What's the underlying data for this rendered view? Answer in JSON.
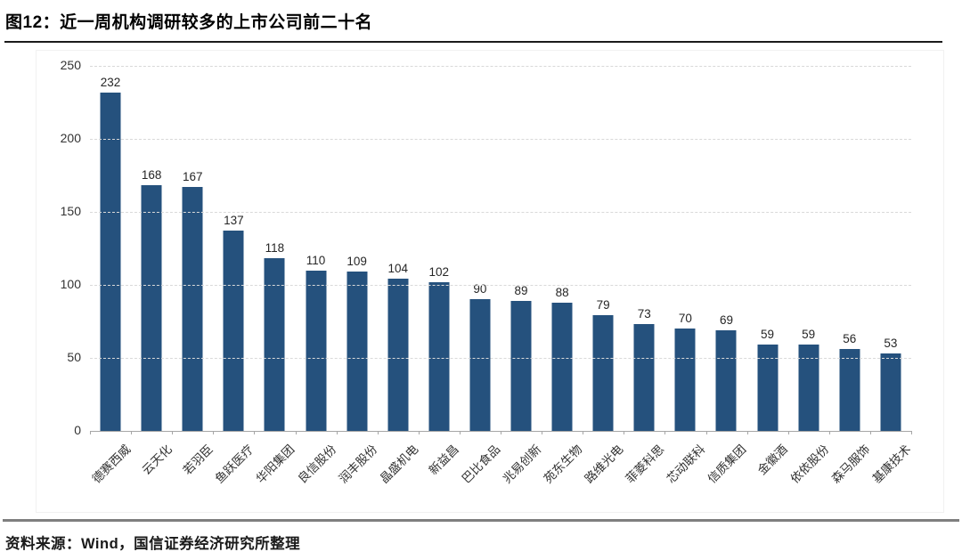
{
  "figure": {
    "title": "图12：近一周机构调研较多的上市公司前二十名",
    "source": "资料来源：Wind，国信证券经济研究所整理"
  },
  "chart_data": {
    "type": "bar",
    "title": "图12：近一周机构调研较多的上市公司前二十名",
    "categories": [
      "德赛西威",
      "云天化",
      "若羽臣",
      "鱼跃医疗",
      "华阳集团",
      "良信股份",
      "润丰股份",
      "晶盛机电",
      "新益昌",
      "巴比食品",
      "兆易创新",
      "苑东生物",
      "路维光电",
      "菲菱科思",
      "芯动联科",
      "信质集团",
      "金徽酒",
      "依依股份",
      "森马服饰",
      "基康技术"
    ],
    "values": [
      232,
      168,
      167,
      137,
      118,
      110,
      109,
      104,
      102,
      90,
      89,
      88,
      79,
      73,
      70,
      69,
      59,
      59,
      56,
      53
    ],
    "xlabel": "",
    "ylabel": "",
    "ylim": [
      0,
      250
    ],
    "yticks": [
      0,
      50,
      100,
      150,
      200,
      250
    ],
    "grid": true,
    "legend": "none",
    "bar_color": "#25517D",
    "gridline_color": "#D9D9D9",
    "axis_color": "#A6A6A6",
    "tick_label_color": "#333333",
    "value_label_color": "#262626"
  }
}
